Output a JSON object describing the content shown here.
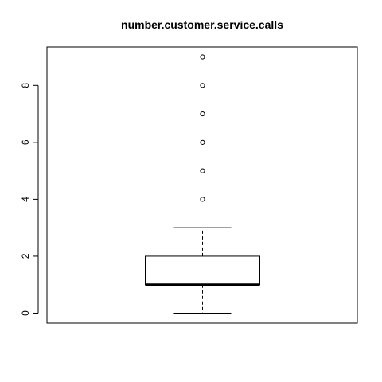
{
  "chart_data": {
    "type": "boxplot",
    "title": "number.customer.service.calls",
    "xlabel": "",
    "ylabel": "",
    "ylim": [
      -0.35,
      9.35
    ],
    "yticks": [
      0,
      2,
      4,
      6,
      8
    ],
    "ytick_labels": [
      "0",
      "2",
      "4",
      "6",
      "8"
    ],
    "grid": false,
    "box": {
      "whisker_low": 0,
      "q1": 1,
      "median": 1,
      "q3": 2,
      "whisker_high": 3
    },
    "outliers": [
      4,
      5,
      6,
      7,
      8,
      9
    ]
  }
}
